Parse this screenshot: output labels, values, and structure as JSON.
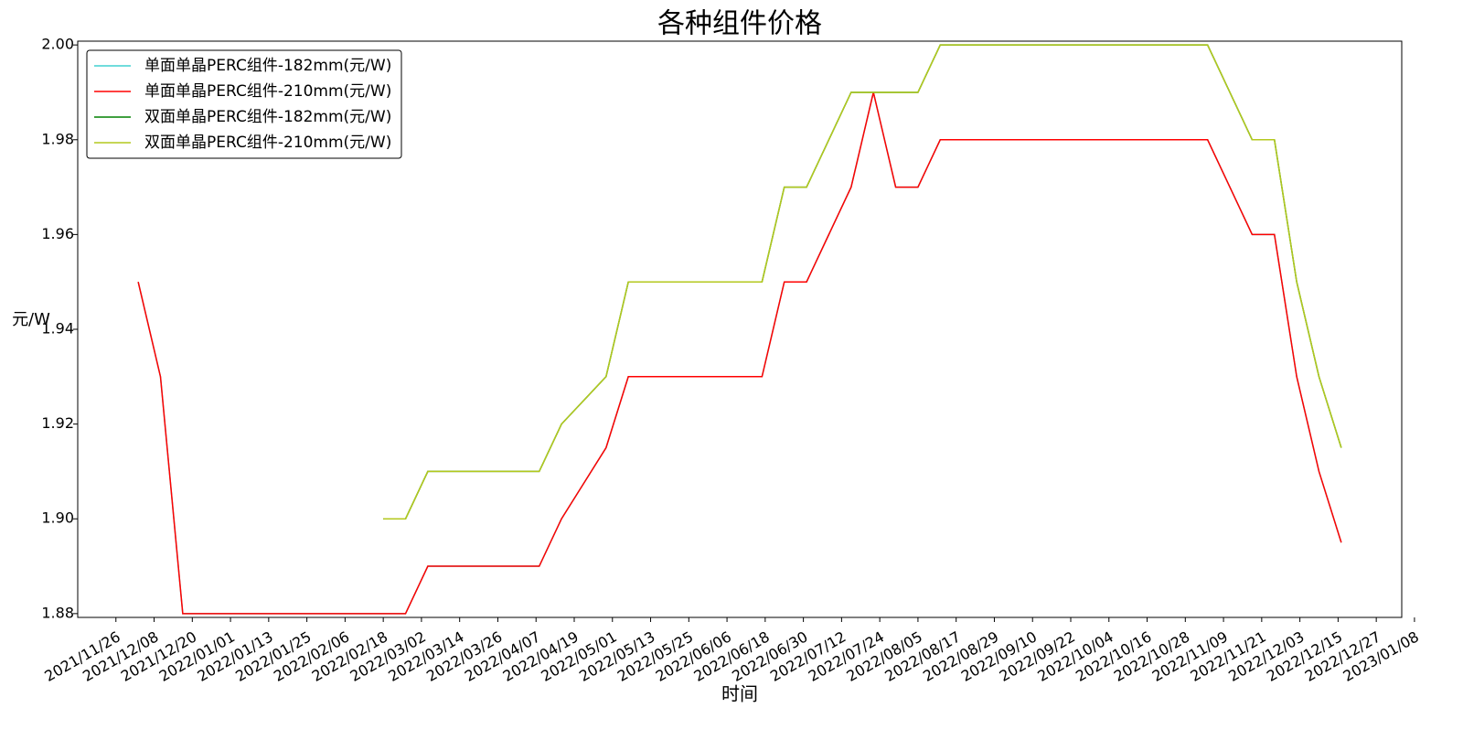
{
  "chart_data": {
    "type": "line",
    "title": "各种组件价格",
    "x_label": "时间",
    "y_label": "元/W",
    "x": [
      "2021-12-03",
      "2021-12-10",
      "2021-12-17",
      "2021-12-24",
      "2021-12-31",
      "2022-01-07",
      "2022-01-14",
      "2022-01-21",
      "2022-01-28",
      "2022-02-04",
      "2022-02-11",
      "2022-02-18",
      "2022-02-25",
      "2022-03-04",
      "2022-03-11",
      "2022-03-18",
      "2022-03-25",
      "2022-04-01",
      "2022-04-08",
      "2022-04-15",
      "2022-04-22",
      "2022-04-29",
      "2022-05-06",
      "2022-05-13",
      "2022-05-20",
      "2022-05-27",
      "2022-06-03",
      "2022-06-10",
      "2022-06-17",
      "2022-06-24",
      "2022-07-01",
      "2022-07-08",
      "2022-07-15",
      "2022-07-22",
      "2022-07-29",
      "2022-08-05",
      "2022-08-12",
      "2022-08-19",
      "2022-08-26",
      "2022-09-02",
      "2022-09-09",
      "2022-09-16",
      "2022-09-23",
      "2022-09-30",
      "2022-10-07",
      "2022-10-14",
      "2022-10-21",
      "2022-10-28",
      "2022-11-04",
      "2022-11-11",
      "2022-11-18",
      "2022-11-25",
      "2022-12-02",
      "2022-12-09",
      "2022-12-16"
    ],
    "series": [
      {
        "name": "单面单晶PERC组件-182mm(元/W)",
        "color": "#40d0d0",
        "values": [
          1.95,
          1.93,
          1.88,
          1.88,
          1.88,
          1.88,
          1.88,
          1.88,
          1.88,
          1.88,
          1.88,
          1.88,
          1.88,
          1.89,
          1.89,
          1.89,
          1.89,
          1.89,
          1.89,
          1.9,
          1.9075,
          1.915,
          1.93,
          1.93,
          1.93,
          1.93,
          1.93,
          1.93,
          1.93,
          1.95,
          1.95,
          1.96,
          1.97,
          1.99,
          1.97,
          1.97,
          1.98,
          1.98,
          1.98,
          1.98,
          1.98,
          1.98,
          1.98,
          1.98,
          1.98,
          1.98,
          1.98,
          1.98,
          1.98,
          1.97,
          1.96,
          1.96,
          1.93,
          1.91,
          1.895
        ]
      },
      {
        "name": "单面单晶PERC组件-210mm(元/W)",
        "color": "#ff0000",
        "values": [
          1.95,
          1.93,
          1.88,
          1.88,
          1.88,
          1.88,
          1.88,
          1.88,
          1.88,
          1.88,
          1.88,
          1.88,
          1.88,
          1.89,
          1.89,
          1.89,
          1.89,
          1.89,
          1.89,
          1.9,
          1.9075,
          1.915,
          1.93,
          1.93,
          1.93,
          1.93,
          1.93,
          1.93,
          1.93,
          1.95,
          1.95,
          1.96,
          1.97,
          1.99,
          1.97,
          1.97,
          1.98,
          1.98,
          1.98,
          1.98,
          1.98,
          1.98,
          1.98,
          1.98,
          1.98,
          1.98,
          1.98,
          1.98,
          1.98,
          1.97,
          1.96,
          1.96,
          1.93,
          1.91,
          1.895
        ]
      },
      {
        "name": "双面单晶PERC组件-182mm(元/W)",
        "color": "#008000",
        "values": [
          null,
          null,
          null,
          null,
          null,
          null,
          null,
          null,
          null,
          null,
          null,
          1.9,
          1.9,
          1.91,
          1.91,
          1.91,
          1.91,
          1.91,
          1.91,
          1.92,
          1.925,
          1.93,
          1.95,
          1.95,
          1.95,
          1.95,
          1.95,
          1.95,
          1.95,
          1.97,
          1.97,
          1.98,
          1.99,
          1.99,
          1.99,
          1.99,
          2.0,
          2.0,
          2.0,
          2.0,
          2.0,
          2.0,
          2.0,
          2.0,
          2.0,
          2.0,
          2.0,
          2.0,
          2.0,
          1.99,
          1.98,
          1.98,
          1.95,
          1.93,
          1.915
        ]
      },
      {
        "name": "双面单晶PERC组件-210mm(元/W)",
        "color": "#b4c81e",
        "values": [
          null,
          null,
          null,
          null,
          null,
          null,
          null,
          null,
          null,
          null,
          null,
          1.9,
          1.9,
          1.91,
          1.91,
          1.91,
          1.91,
          1.91,
          1.91,
          1.92,
          1.925,
          1.93,
          1.95,
          1.95,
          1.95,
          1.95,
          1.95,
          1.95,
          1.95,
          1.97,
          1.97,
          1.98,
          1.99,
          1.99,
          1.99,
          1.99,
          2.0,
          2.0,
          2.0,
          2.0,
          2.0,
          2.0,
          2.0,
          2.0,
          2.0,
          2.0,
          2.0,
          2.0,
          2.0,
          1.99,
          1.98,
          1.98,
          1.95,
          1.93,
          1.915
        ]
      }
    ],
    "xlim": [
      "2021-11-14",
      "2023-01-04"
    ],
    "xticks": [
      {
        "value": "2021-11-26",
        "label": "2021/11/26"
      },
      {
        "value": "2021-12-08",
        "label": "2021/12/08"
      },
      {
        "value": "2021-12-20",
        "label": "2021/12/20"
      },
      {
        "value": "2022-01-01",
        "label": "2022/01/01"
      },
      {
        "value": "2022-01-13",
        "label": "2022/01/13"
      },
      {
        "value": "2022-01-25",
        "label": "2022/01/25"
      },
      {
        "value": "2022-02-06",
        "label": "2022/02/06"
      },
      {
        "value": "2022-02-18",
        "label": "2022/02/18"
      },
      {
        "value": "2022-03-02",
        "label": "2022/03/02"
      },
      {
        "value": "2022-03-14",
        "label": "2022/03/14"
      },
      {
        "value": "2022-03-26",
        "label": "2022/03/26"
      },
      {
        "value": "2022-04-07",
        "label": "2022/04/07"
      },
      {
        "value": "2022-04-19",
        "label": "2022/04/19"
      },
      {
        "value": "2022-05-01",
        "label": "2022/05/01"
      },
      {
        "value": "2022-05-13",
        "label": "2022/05/13"
      },
      {
        "value": "2022-05-25",
        "label": "2022/05/25"
      },
      {
        "value": "2022-06-06",
        "label": "2022/06/06"
      },
      {
        "value": "2022-06-18",
        "label": "2022/06/18"
      },
      {
        "value": "2022-06-30",
        "label": "2022/06/30"
      },
      {
        "value": "2022-07-12",
        "label": "2022/07/12"
      },
      {
        "value": "2022-07-24",
        "label": "2022/07/24"
      },
      {
        "value": "2022-08-05",
        "label": "2022/08/05"
      },
      {
        "value": "2022-08-17",
        "label": "2022/08/17"
      },
      {
        "value": "2022-08-29",
        "label": "2022/08/29"
      },
      {
        "value": "2022-09-10",
        "label": "2022/09/10"
      },
      {
        "value": "2022-09-22",
        "label": "2022/09/22"
      },
      {
        "value": "2022-10-04",
        "label": "2022/10/04"
      },
      {
        "value": "2022-10-16",
        "label": "2022/10/16"
      },
      {
        "value": "2022-10-28",
        "label": "2022/10/28"
      },
      {
        "value": "2022-11-09",
        "label": "2022/11/09"
      },
      {
        "value": "2022-11-21",
        "label": "2022/11/21"
      },
      {
        "value": "2022-12-03",
        "label": "2022/12/03"
      },
      {
        "value": "2022-12-15",
        "label": "2022/12/15"
      },
      {
        "value": "2022-12-27",
        "label": "2022/12/27"
      },
      {
        "value": "2023-01-08",
        "label": "2023/01/08"
      }
    ],
    "ylim": [
      1.8792,
      2.0008
    ],
    "yticks": [
      1.88,
      {
        "value": 1.9,
        "label": "1.90"
      },
      1.92,
      1.94,
      1.96,
      1.98,
      {
        "value": 2.0,
        "label": "2.00"
      }
    ],
    "grid": false,
    "legend": "upper-left"
  }
}
